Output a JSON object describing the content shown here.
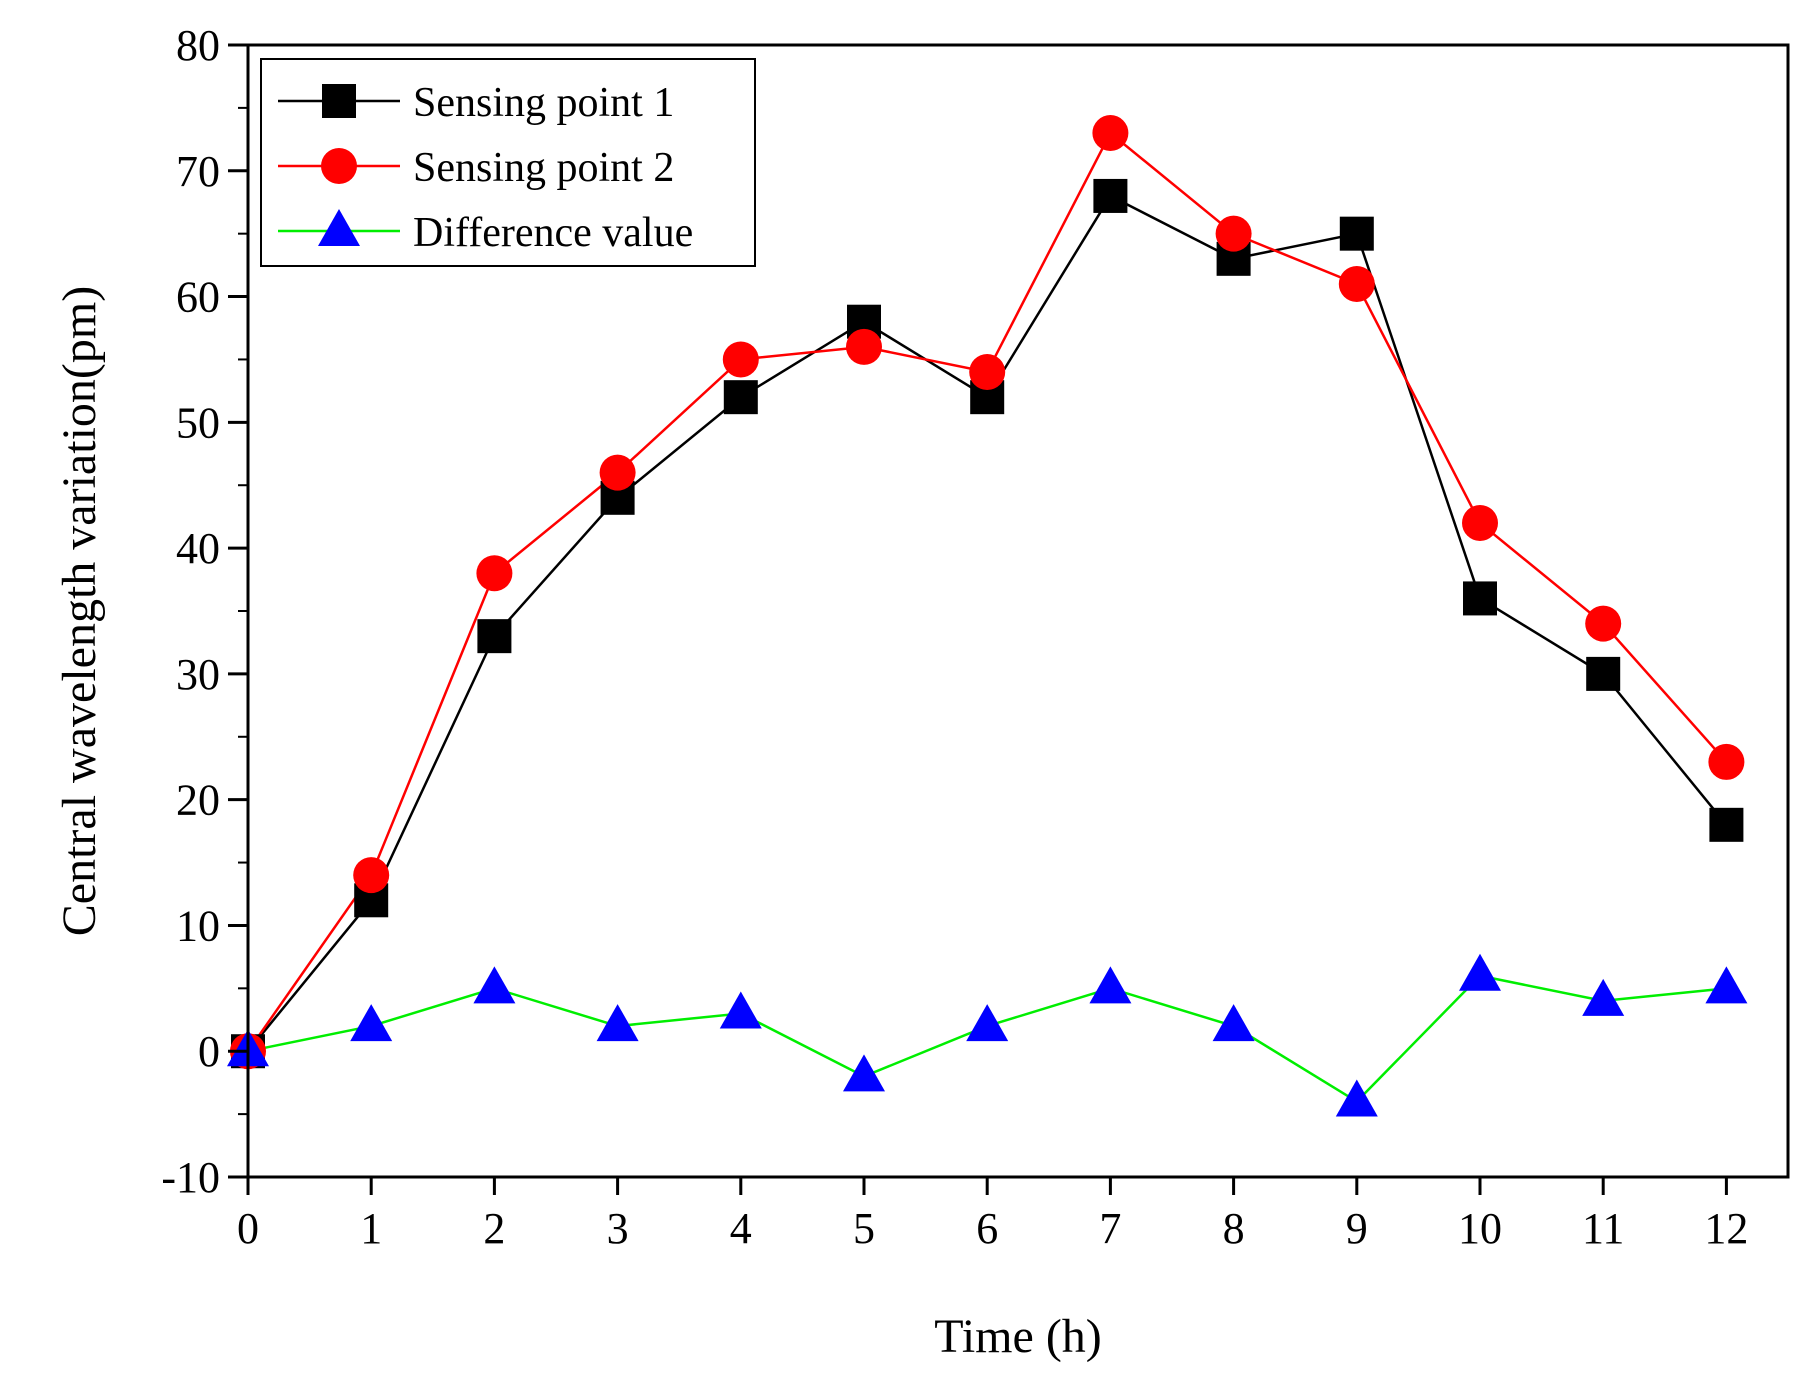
{
  "chart_data": {
    "type": "line",
    "title": "",
    "xlabel": "Time (h)",
    "ylabel": "Central wavelength variation(pm)",
    "x": [
      0,
      1,
      2,
      3,
      4,
      5,
      6,
      7,
      8,
      9,
      10,
      11,
      12
    ],
    "xlim": [
      0,
      12.5
    ],
    "ylim": [
      -10,
      80
    ],
    "xticks": [
      0,
      1,
      2,
      3,
      4,
      5,
      6,
      7,
      8,
      9,
      10,
      11,
      12
    ],
    "xtick_labels": [
      "0",
      "1",
      "2",
      "3",
      "4",
      "5",
      "6",
      "7",
      "8",
      "9",
      "10",
      "11",
      "12"
    ],
    "yticks": [
      -10,
      0,
      10,
      20,
      30,
      40,
      50,
      60,
      70,
      80
    ],
    "ytick_labels": [
      "-10",
      "0",
      "10",
      "20",
      "30",
      "40",
      "50",
      "60",
      "70",
      "80"
    ],
    "grid": false,
    "legend_position": "top-left",
    "series": [
      {
        "name": "Sensing point 1",
        "marker": "square",
        "line_color": "#000000",
        "marker_color": "#000000",
        "values": [
          0,
          12,
          33,
          44,
          52,
          58,
          52,
          68,
          63,
          65,
          36,
          30,
          18
        ]
      },
      {
        "name": "Sensing point 2",
        "marker": "circle",
        "line_color": "#ff0000",
        "marker_color": "#ff0000",
        "values": [
          0,
          14,
          38,
          46,
          55,
          56,
          54,
          73,
          65,
          61,
          42,
          34,
          23
        ]
      },
      {
        "name": "Difference value",
        "marker": "triangle",
        "line_color": "#00ee00",
        "marker_color": "#0000ff",
        "values": [
          0,
          2,
          5,
          2,
          3,
          -2,
          2,
          5,
          2,
          -4,
          6,
          4,
          5
        ]
      }
    ]
  }
}
